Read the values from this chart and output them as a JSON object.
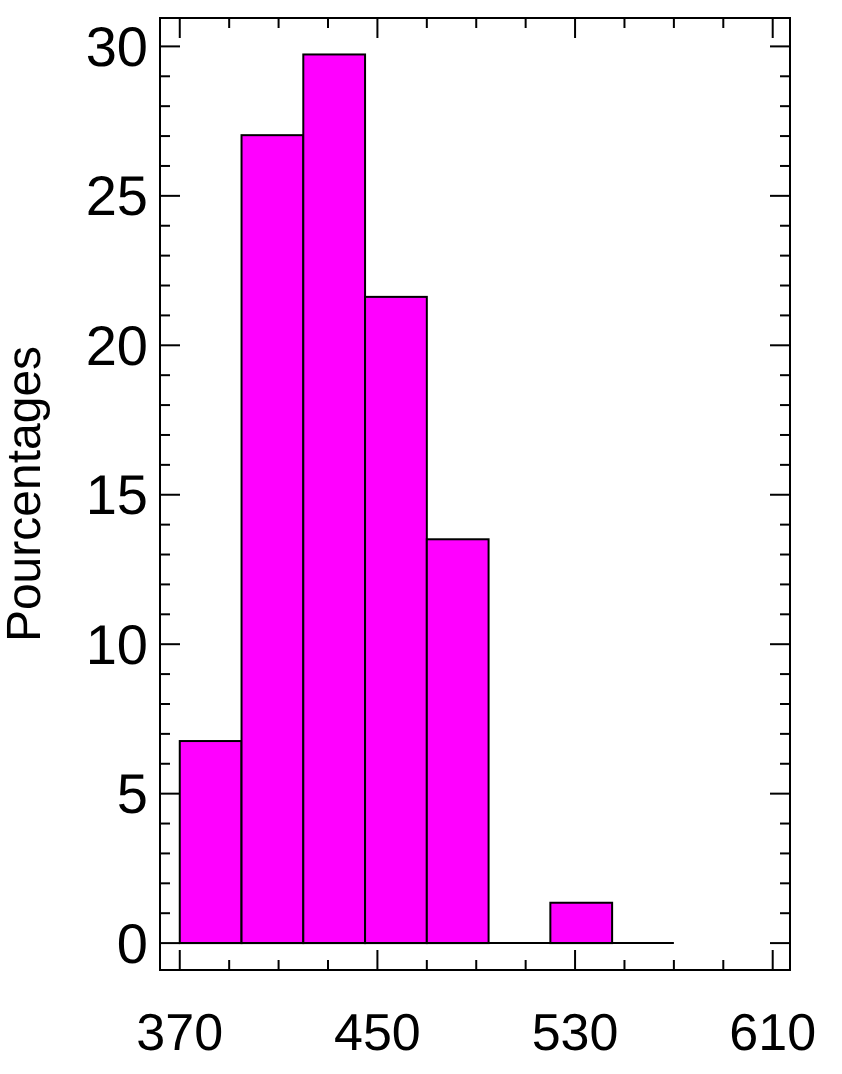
{
  "chart_data": {
    "type": "histogram",
    "ylabel": "Pourcentages",
    "bins": [
      370,
      395,
      420,
      445,
      470,
      495,
      520,
      545,
      570
    ],
    "values": [
      6.76,
      27.03,
      29.73,
      21.62,
      13.51,
      0,
      1.35,
      0
    ],
    "color": "#ff00ff",
    "xlim": [
      362,
      617
    ],
    "xticks": [
      370,
      {
        "value": 390,
        "label": null
      },
      {
        "value": 410,
        "label": null
      },
      {
        "value": 430,
        "label": null
      },
      450,
      {
        "value": 470,
        "label": null
      },
      {
        "value": 490,
        "label": null
      },
      {
        "value": 510,
        "label": null
      },
      530,
      {
        "value": 550,
        "label": null
      },
      {
        "value": 570,
        "label": null
      },
      {
        "value": 590,
        "label": null
      },
      610
    ],
    "ylim": [
      -0.9,
      30.95
    ],
    "yticks": [
      0,
      {
        "value": 1,
        "label": null
      },
      {
        "value": 2,
        "label": null
      },
      {
        "value": 3,
        "label": null
      },
      {
        "value": 4,
        "label": null
      },
      5,
      {
        "value": 6,
        "label": null
      },
      {
        "value": 7,
        "label": null
      },
      {
        "value": 8,
        "label": null
      },
      {
        "value": 9,
        "label": null
      },
      10,
      {
        "value": 11,
        "label": null
      },
      {
        "value": 12,
        "label": null
      },
      {
        "value": 13,
        "label": null
      },
      {
        "value": 14,
        "label": null
      },
      15,
      {
        "value": 16,
        "label": null
      },
      {
        "value": 17,
        "label": null
      },
      {
        "value": 18,
        "label": null
      },
      {
        "value": 19,
        "label": null
      },
      20,
      {
        "value": 21,
        "label": null
      },
      {
        "value": 22,
        "label": null
      },
      {
        "value": 23,
        "label": null
      },
      {
        "value": 24,
        "label": null
      },
      25,
      {
        "value": 26,
        "label": null
      },
      {
        "value": 27,
        "label": null
      },
      {
        "value": 28,
        "label": null
      },
      {
        "value": 29,
        "label": null
      },
      30
    ]
  }
}
